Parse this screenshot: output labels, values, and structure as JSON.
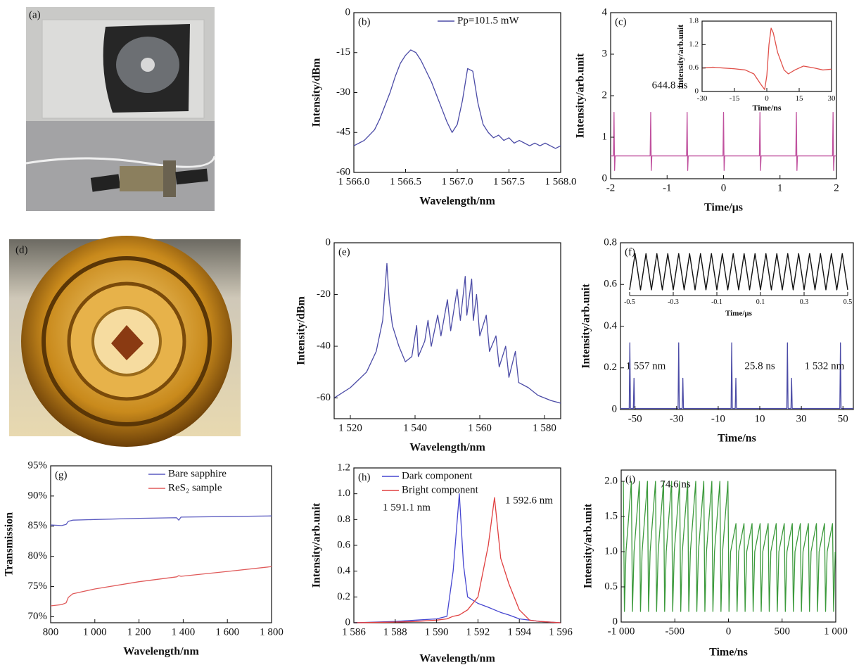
{
  "photos": [
    {
      "label": "(a)"
    },
    {
      "label": "(d)"
    }
  ],
  "chart_data": [
    {
      "type": "line",
      "panel": "(b)",
      "xlabel": "Wavelength/nm",
      "ylabel": "Intensity/dBm",
      "legend": "upper right",
      "xlim": [
        1566,
        1568
      ],
      "ylim": [
        -60,
        0
      ],
      "xticks": [
        {
          "value": 1566,
          "label": "1 566.0"
        },
        {
          "value": 1566.5,
          "label": "1 566.5"
        },
        {
          "value": 1567,
          "label": "1 567.0"
        },
        {
          "value": 1567.5,
          "label": "1 567.5"
        },
        {
          "value": 1568,
          "label": "1 568.0"
        }
      ],
      "yticks": [
        -60,
        -45,
        -30,
        -15,
        0
      ],
      "x": [
        1566,
        1566.05,
        1566.1,
        1566.15,
        1566.2,
        1566.25,
        1566.3,
        1566.35,
        1566.4,
        1566.45,
        1566.5,
        1566.55,
        1566.6,
        1566.65,
        1566.7,
        1566.75,
        1566.8,
        1566.85,
        1566.9,
        1566.95,
        1567,
        1567.05,
        1567.1,
        1567.15,
        1567.2,
        1567.25,
        1567.3,
        1567.35,
        1567.4,
        1567.45,
        1567.5,
        1567.55,
        1567.6,
        1567.65,
        1567.7,
        1567.75,
        1567.8,
        1567.85,
        1567.9,
        1567.95,
        1568
      ],
      "series": [
        {
          "name": "Pp=101.5  mW",
          "color": "#4b4ba6",
          "values": [
            -50,
            -49,
            -48,
            -46,
            -44,
            -40,
            -35,
            -30,
            -24,
            -19,
            -16,
            -14,
            -15,
            -18,
            -22,
            -26,
            -31,
            -36,
            -41,
            -45,
            -42,
            -33,
            -21,
            -22,
            -34,
            -42,
            -45,
            -47,
            -46,
            -48,
            -47,
            -49,
            -48,
            -49,
            -50,
            -49,
            -50,
            -49,
            -50,
            -51,
            -50
          ]
        }
      ]
    },
    {
      "type": "line",
      "panel": "(c)",
      "xlabel": "Time/μs",
      "ylabel": "Intensity/arb.unit",
      "xlim": [
        -2,
        2
      ],
      "ylim": [
        0,
        4
      ],
      "xticks": [
        -2,
        -1,
        0,
        1,
        2
      ],
      "yticks": [
        0,
        1,
        2,
        3,
        4
      ],
      "annotations": [
        "644.8 ns"
      ],
      "x": [
        -2,
        -1.95,
        -1.94,
        -1.93,
        -1.92,
        -1.3,
        -1.29,
        -1.28,
        -1.27,
        -0.655,
        -0.645,
        -0.635,
        -0.625,
        -0.01,
        0,
        0.01,
        0.02,
        0.635,
        0.645,
        0.655,
        0.665,
        1.28,
        1.29,
        1.3,
        1.31,
        1.93,
        1.94,
        1.95,
        1.96,
        2
      ],
      "series": [
        {
          "color": "#c0519e",
          "values": [
            0.55,
            0.55,
            1.6,
            0.2,
            0.55,
            0.55,
            1.6,
            0.2,
            0.55,
            0.55,
            1.6,
            0.2,
            0.55,
            0.55,
            1.6,
            0.2,
            0.55,
            0.55,
            1.6,
            0.2,
            0.55,
            0.55,
            1.6,
            0.2,
            0.55,
            0.55,
            1.6,
            0.2,
            0.55,
            0.55
          ]
        }
      ]
    },
    {
      "type": "line",
      "xlabel": "Time/ns",
      "ylabel": "Intensity/arb.unit",
      "xlim": [
        -30,
        30
      ],
      "ylim": [
        0,
        1.8
      ],
      "xticks": [
        -30,
        -15,
        0,
        15,
        30
      ],
      "yticks": [
        0,
        0.6,
        1.2,
        1.8
      ],
      "x": [
        -30,
        -25,
        -20,
        -15,
        -10,
        -6,
        -3,
        -1,
        0,
        1,
        2,
        3,
        5,
        8,
        10,
        13,
        17,
        22,
        26,
        30
      ],
      "series": [
        {
          "color": "#e0504a",
          "values": [
            0.6,
            0.62,
            0.6,
            0.58,
            0.55,
            0.45,
            0.2,
            0.05,
            0.4,
            1.2,
            1.62,
            1.5,
            1,
            0.55,
            0.45,
            0.55,
            0.65,
            0.6,
            0.55,
            0.57
          ]
        }
      ]
    },
    {
      "type": "line",
      "panel": "(e)",
      "xlabel": "Wavelength/nm",
      "ylabel": "Intensity/dBm",
      "xlim": [
        1515,
        1585
      ],
      "ylim": [
        -68,
        0
      ],
      "xticks": [
        {
          "value": 1520,
          "label": "1 520"
        },
        {
          "value": 1540,
          "label": "1 540"
        },
        {
          "value": 1560,
          "label": "1 560"
        },
        {
          "value": 1580,
          "label": "1 580"
        }
      ],
      "yticks": [
        -60,
        -40,
        -20,
        0
      ],
      "x": [
        1515,
        1520,
        1525,
        1528,
        1530,
        1531.3,
        1532,
        1533,
        1535,
        1537,
        1539,
        1540.5,
        1541,
        1543,
        1544,
        1545,
        1547,
        1548,
        1550,
        1551,
        1553,
        1554,
        1555.5,
        1556,
        1557.5,
        1558,
        1559,
        1560,
        1562,
        1563,
        1565,
        1566,
        1568,
        1569,
        1571,
        1572,
        1575,
        1578,
        1582,
        1585
      ],
      "series": [
        {
          "color": "#4b4ba6",
          "values": [
            -60,
            -56,
            -50,
            -42,
            -30,
            -8,
            -22,
            -32,
            -40,
            -46,
            -44,
            -32,
            -44,
            -38,
            -30,
            -40,
            -28,
            -36,
            -22,
            -34,
            -18,
            -30,
            -13,
            -28,
            -14,
            -30,
            -20,
            -36,
            -28,
            -42,
            -36,
            -48,
            -40,
            -52,
            -42,
            -54,
            -56,
            -59,
            -61,
            -62
          ]
        }
      ]
    },
    {
      "type": "line",
      "panel": "(f)",
      "xlabel": "Time/ns",
      "ylabel": "Intensity/arb.unit",
      "xlim": [
        -57,
        55
      ],
      "ylim": [
        0,
        0.8
      ],
      "xticks": [
        -50,
        -30,
        -10,
        10,
        30,
        50
      ],
      "yticks": [
        0,
        0.2,
        0.4,
        0.6,
        0.8
      ],
      "annotations": [
        "1 557 nm",
        "25.8 ns",
        "1 532 nm"
      ],
      "x": [
        -57,
        -52.8,
        -52.5,
        -52.2,
        -50.8,
        -50.5,
        -50.2,
        -29.3,
        -29,
        -28.7,
        -27.3,
        -27,
        -26.7,
        -3.8,
        -3.5,
        -3.2,
        -1.8,
        -1.5,
        -1.2,
        23,
        23.3,
        23.6,
        25,
        25.3,
        25.6,
        48.5,
        48.8,
        49.1,
        55
      ],
      "series": [
        {
          "color": "#4b4ba6",
          "values": [
            0.005,
            0.005,
            0.32,
            0.005,
            0.005,
            0.15,
            0.005,
            0.005,
            0.32,
            0.005,
            0.005,
            0.15,
            0.005,
            0.005,
            0.32,
            0.005,
            0.005,
            0.15,
            0.005,
            0.005,
            0.32,
            0.005,
            0.005,
            0.15,
            0.005,
            0.005,
            0.32,
            0.005,
            0.005
          ]
        }
      ]
    },
    {
      "type": "line",
      "xlabel": "Time/μs",
      "xlim": [
        -0.5,
        0.5
      ],
      "ylim": [
        0.54,
        0.78
      ],
      "xticks": [
        -0.5,
        -0.3,
        -0.1,
        0.1,
        0.3,
        0.5
      ],
      "x": [
        -0.5,
        -0.475,
        -0.45,
        -0.425,
        -0.4,
        -0.375,
        -0.35,
        -0.325,
        -0.3,
        -0.275,
        -0.25,
        -0.225,
        -0.2,
        -0.175,
        -0.15,
        -0.125,
        -0.1,
        -0.075,
        -0.05,
        -0.025,
        0,
        0.025,
        0.05,
        0.075,
        0.1,
        0.125,
        0.15,
        0.175,
        0.2,
        0.225,
        0.25,
        0.275,
        0.3,
        0.325,
        0.35,
        0.375,
        0.4,
        0.425,
        0.45,
        0.475,
        0.5
      ],
      "series": [
        {
          "color": "#111111",
          "values": [
            0.57,
            0.76,
            0.57,
            0.76,
            0.57,
            0.76,
            0.57,
            0.76,
            0.57,
            0.76,
            0.57,
            0.76,
            0.57,
            0.76,
            0.57,
            0.76,
            0.57,
            0.76,
            0.57,
            0.76,
            0.57,
            0.76,
            0.57,
            0.76,
            0.57,
            0.76,
            0.57,
            0.76,
            0.57,
            0.76,
            0.57,
            0.76,
            0.57,
            0.76,
            0.57,
            0.76,
            0.57,
            0.76,
            0.57,
            0.76,
            0.57
          ]
        }
      ]
    },
    {
      "type": "line",
      "panel": "(g)",
      "xlabel": "Wavelength/nm",
      "ylabel": "Transmission",
      "legend": "upper right",
      "xlim": [
        800,
        1800
      ],
      "ylim": [
        69,
        95
      ],
      "xticks": [
        800,
        {
          "value": 1000,
          "label": "1 000"
        },
        {
          "value": 1200,
          "label": "1 200"
        },
        {
          "value": 1400,
          "label": "1 400"
        },
        {
          "value": 1600,
          "label": "1 600"
        },
        {
          "value": 1800,
          "label": "1 800"
        }
      ],
      "yticks": [
        {
          "value": 70,
          "label": "70%"
        },
        {
          "value": 75,
          "label": "75%"
        },
        {
          "value": 80,
          "label": "80%"
        },
        {
          "value": 85,
          "label": "85%"
        },
        {
          "value": 90,
          "label": "90%"
        },
        {
          "value": 95,
          "label": "95%"
        }
      ],
      "x": [
        800,
        850,
        870,
        880,
        900,
        1000,
        1200,
        1370,
        1380,
        1390,
        1600,
        1800
      ],
      "series": [
        {
          "name": "Bare sapphire",
          "color": "#5a5ac0",
          "values": [
            85.2,
            85.1,
            85.3,
            85.8,
            86,
            86.1,
            86.3,
            86.4,
            86,
            86.5,
            86.6,
            86.7
          ]
        },
        {
          "name": "ReS₂ sample",
          "color": "#e05a5a",
          "values": [
            71.8,
            72,
            72.3,
            73.2,
            73.8,
            74.6,
            75.8,
            76.6,
            76.8,
            76.7,
            77.5,
            78.3
          ]
        }
      ]
    },
    {
      "type": "line",
      "panel": "(h)",
      "xlabel": "Wavelength/nm",
      "ylabel": "Intensity/arb.unit",
      "legend": "upper left",
      "xlim": [
        1586,
        1596
      ],
      "ylim": [
        0,
        1.2
      ],
      "xticks": [
        {
          "value": 1586,
          "label": "1 586"
        },
        {
          "value": 1588,
          "label": "1 588"
        },
        {
          "value": 1590,
          "label": "1 590"
        },
        {
          "value": 1592,
          "label": "1 592"
        },
        {
          "value": 1594,
          "label": "1 594"
        },
        {
          "value": 1596,
          "label": "1 596"
        }
      ],
      "yticks": [
        0,
        0.2,
        0.4,
        0.6,
        0.8,
        {
          "value": 1,
          "label": "1.0"
        },
        1.2
      ],
      "annotations": [
        "1 591.1 nm",
        "1 592.6 nm"
      ],
      "x": [
        1586,
        1588,
        1589,
        1590,
        1590.5,
        1590.8,
        1591.1,
        1591.3,
        1591.5,
        1592,
        1592.5,
        1592.8,
        1593.1,
        1593.5,
        1594,
        1594.5,
        1595,
        1596
      ],
      "series": [
        {
          "name": "Dark component",
          "color": "#4646d0",
          "values": [
            0,
            0.01,
            0.02,
            0.03,
            0.05,
            0.4,
            1,
            0.45,
            0.2,
            0.15,
            0.12,
            0.1,
            0.08,
            0.06,
            0.03,
            0.02,
            0.01,
            0
          ]
        },
        {
          "name": "Bright component",
          "color": "#e04040",
          "values": [
            0,
            0.005,
            0.01,
            0.02,
            0.03,
            0.05,
            0.06,
            0.08,
            0.1,
            0.2,
            0.6,
            0.97,
            0.5,
            0.3,
            0.1,
            0.02,
            0.01,
            0
          ]
        }
      ]
    },
    {
      "type": "line",
      "panel": "(i)",
      "xlabel": "Time/ns",
      "ylabel": "Intensity/arb.unit",
      "xlim": [
        -1000,
        1000
      ],
      "ylim": [
        0,
        2.16
      ],
      "xticks": [
        {
          "value": -1000,
          "label": "-1 000"
        },
        -500,
        0,
        500,
        {
          "value": 1000,
          "label": "1 000"
        }
      ],
      "yticks": [
        0,
        0.5,
        {
          "value": 1,
          "label": "1.0"
        },
        1.5,
        {
          "value": 2,
          "label": "2.0"
        }
      ],
      "annotations": [
        "74.6 ns"
      ],
      "x": [
        -980,
        -970,
        -955,
        -905,
        -895,
        -880,
        -830,
        -820,
        -805,
        -755,
        -745,
        -730,
        -680,
        -670,
        -655,
        -605,
        -595,
        -580,
        -530,
        -520,
        -505,
        -455,
        -445,
        -430,
        -380,
        -370,
        -355,
        -305,
        -295,
        -280,
        -230,
        -220,
        -205,
        -155,
        -145,
        -130,
        -80,
        -70,
        -55,
        -5,
        5,
        20,
        70,
        80,
        95,
        145,
        155,
        170,
        220,
        230,
        245,
        295,
        305,
        320,
        370,
        380,
        395,
        445,
        455,
        470,
        520,
        530,
        545,
        595,
        605,
        620,
        670,
        680,
        695,
        745,
        755,
        770,
        820,
        830,
        845,
        895,
        905,
        920,
        970,
        980,
        995
      ],
      "series": [
        {
          "color": "#3c9a3c",
          "values": [
            2,
            0.15,
            1,
            2,
            0.15,
            1,
            2,
            0.15,
            1,
            2,
            0.15,
            1,
            2,
            0.15,
            1,
            2,
            0.15,
            1,
            2,
            0.15,
            1,
            2,
            0.15,
            1,
            2,
            0.15,
            1,
            2,
            0.15,
            1,
            2,
            0.15,
            1,
            2,
            0.15,
            1,
            2,
            0.15,
            1,
            2,
            0.15,
            1,
            1.4,
            0.15,
            1,
            1.4,
            0.15,
            1,
            1.4,
            0.15,
            1,
            1.4,
            0.15,
            1,
            1.4,
            0.15,
            1,
            1.4,
            0.15,
            1,
            1.4,
            0.15,
            1,
            1.4,
            0.15,
            1,
            1.4,
            0.15,
            1,
            1.4,
            0.15,
            1,
            1.4,
            0.15,
            1,
            1.4,
            0.15,
            1,
            1.4,
            0.15,
            1
          ]
        }
      ]
    }
  ]
}
